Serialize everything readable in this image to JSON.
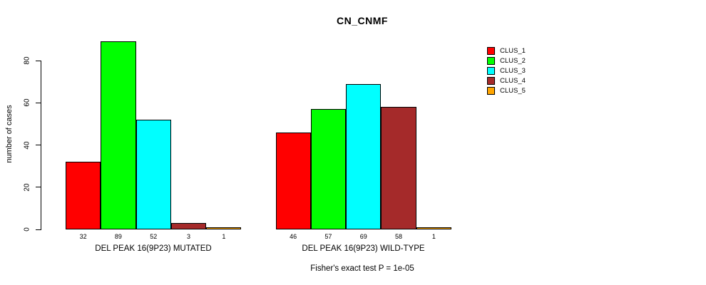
{
  "chart_data": {
    "type": "bar",
    "title": "CN_CNMF",
    "ylabel": "number of cases",
    "xlabel": "",
    "yticks": [
      0,
      20,
      40,
      60,
      80
    ],
    "ylim": [
      0,
      80
    ],
    "grid": false,
    "legend_position": "right",
    "categories": [
      "DEL PEAK 16(9P23) MUTATED",
      "DEL PEAK 16(9P23) WILD-TYPE"
    ],
    "series": [
      {
        "name": "CLUS_1",
        "color": "#ff0000",
        "values": [
          32,
          46
        ]
      },
      {
        "name": "CLUS_2",
        "color": "#00ff00",
        "values": [
          89,
          57
        ]
      },
      {
        "name": "CLUS_3",
        "color": "#00ffff",
        "values": [
          52,
          69
        ]
      },
      {
        "name": "CLUS_4",
        "color": "#a52a2a",
        "values": [
          3,
          58
        ]
      },
      {
        "name": "CLUS_5",
        "color": "#ffa500",
        "values": [
          1,
          1
        ]
      }
    ],
    "bar_value_labels": [
      [
        32,
        89,
        52,
        3,
        1
      ],
      [
        46,
        57,
        69,
        58,
        1
      ]
    ],
    "annotation": "Fisher's exact test P = 1e-05"
  },
  "colors": {
    "axis": "#000000",
    "text": "#000000",
    "background": "#ffffff"
  }
}
